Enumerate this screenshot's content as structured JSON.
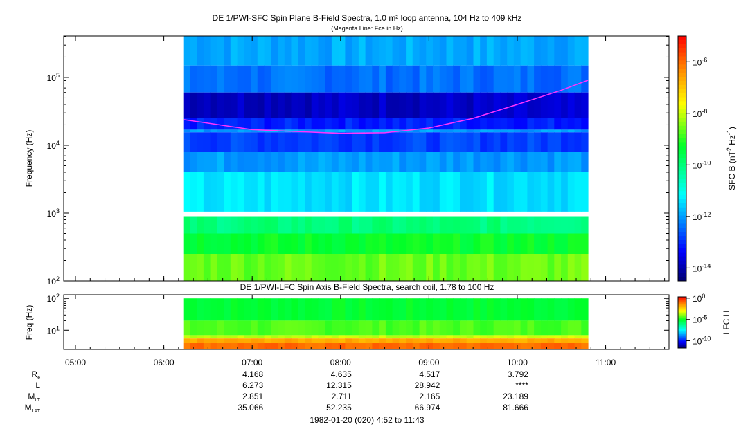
{
  "chart_data": [
    {
      "type": "heatmap",
      "title": "DE 1/PWI-SFC  Spin Plane B-Field Spectra, 1.0 m² loop antenna, 104 Hz to 409 kHz",
      "subtitle": "(Magenta Line: Fce in Hz)",
      "ylabel": "Frequency (Hz)",
      "yscale": "log",
      "ylim": [
        100,
        409000
      ],
      "yticks": [
        {
          "value": 100,
          "label": "10",
          "exp": "2"
        },
        {
          "value": 1000,
          "label": "10",
          "exp": "3"
        },
        {
          "value": 10000,
          "label": "10",
          "exp": "4"
        },
        {
          "value": 100000,
          "label": "10",
          "exp": "5"
        }
      ],
      "data_time_range_hours": [
        6.22,
        10.8
      ],
      "bands_log_power": [
        {
          "f_low": 150000,
          "f_high": 409000,
          "log_power": -11.9
        },
        {
          "f_low": 60000,
          "f_high": 150000,
          "log_power": -12.4
        },
        {
          "f_low": 25000,
          "f_high": 60000,
          "log_power": -13.8
        },
        {
          "f_low": 17000,
          "f_high": 25000,
          "log_power": -13.1
        },
        {
          "f_low": 15500,
          "f_high": 17000,
          "log_power": -12.0
        },
        {
          "f_low": 8000,
          "f_high": 15500,
          "log_power": -12.8
        },
        {
          "f_low": 4000,
          "f_high": 8000,
          "log_power": -12.0
        },
        {
          "f_low": 1050,
          "f_high": 4000,
          "log_power": -11.4
        },
        {
          "f_low": 500,
          "f_high": 900,
          "log_power": -10.0
        },
        {
          "f_low": 250,
          "f_high": 500,
          "log_power": -9.3
        },
        {
          "f_low": 100,
          "f_high": 250,
          "log_power": -8.6
        }
      ],
      "fce_line": {
        "color": "#ff33ff",
        "points": [
          {
            "hour": 6.22,
            "hz": 24000
          },
          {
            "hour": 7.0,
            "hz": 17000
          },
          {
            "hour": 8.0,
            "hz": 15000
          },
          {
            "hour": 8.5,
            "hz": 15300
          },
          {
            "hour": 9.0,
            "hz": 18000
          },
          {
            "hour": 9.5,
            "hz": 25000
          },
          {
            "hour": 10.0,
            "hz": 40000
          },
          {
            "hour": 10.5,
            "hz": 65000
          },
          {
            "hour": 10.8,
            "hz": 91000
          }
        ]
      },
      "colorbar": {
        "label": "SFC B (nT² Hz⁻¹)",
        "label_main": "SFC B (nT",
        "label_sup1": "2",
        "label_mid": " Hz",
        "label_sup2": "-1",
        "label_end": ")",
        "range_log": [
          -14.5,
          -5.0
        ],
        "ticks": [
          {
            "label": "10",
            "exp": "-6"
          },
          {
            "label": "10",
            "exp": "-8"
          },
          {
            "label": "10",
            "exp": "-10"
          },
          {
            "label": "10",
            "exp": "-12"
          },
          {
            "label": "10",
            "exp": "-14"
          }
        ],
        "tick_values_log": [
          -6,
          -8,
          -10,
          -12,
          -14
        ]
      }
    },
    {
      "type": "heatmap",
      "title": "DE 1/PWI-LFC  Spin Axis B-Field Spectra, search coil, 1.78 to 100 Hz",
      "ylabel": "Freq (Hz)",
      "yscale": "log",
      "ylim": [
        2.5,
        130
      ],
      "yticks": [
        {
          "value": 10,
          "label": "10",
          "exp": "1"
        },
        {
          "value": 100,
          "label": "10",
          "exp": "2"
        }
      ],
      "bands_log_power": [
        {
          "f_low": 20,
          "f_high": 100,
          "log_power": -5.2
        },
        {
          "f_low": 7,
          "f_high": 20,
          "log_power": -4.5
        },
        {
          "f_low": 5.5,
          "f_high": 7,
          "log_power": -3.5
        },
        {
          "f_low": 4,
          "f_high": 5.5,
          "log_power": -1.8
        },
        {
          "f_low": 2.5,
          "f_high": 4,
          "log_power": -1.0
        }
      ],
      "colorbar": {
        "label": "LFC H",
        "range_log": [
          -11.7,
          0.3
        ],
        "ticks": [
          {
            "label": "10",
            "exp": "0"
          },
          {
            "label": "10",
            "exp": "-5"
          },
          {
            "label": "10",
            "exp": "-10"
          }
        ],
        "tick_values_log": [
          0,
          -5,
          -10
        ]
      }
    }
  ],
  "time_axis": {
    "range_hours": [
      4.8667,
      11.7167
    ],
    "ticks": [
      {
        "hour": 5,
        "label": "05:00"
      },
      {
        "hour": 6,
        "label": "06:00"
      },
      {
        "hour": 7,
        "label": "07:00"
      },
      {
        "hour": 8,
        "label": "08:00"
      },
      {
        "hour": 9,
        "label": "09:00"
      },
      {
        "hour": 10,
        "label": "10:00"
      },
      {
        "hour": 11,
        "label": "11:00"
      }
    ]
  },
  "ephemeris": {
    "rows": [
      {
        "label": "R",
        "sub": "e",
        "values": [
          "",
          "",
          "4.168",
          "4.635",
          "4.517",
          "3.792",
          ""
        ]
      },
      {
        "label": "L",
        "sub": "",
        "values": [
          "",
          "",
          "6.273",
          "12.315",
          "28.942",
          "****",
          ""
        ]
      },
      {
        "label": "M",
        "sub": "LT",
        "values": [
          "",
          "",
          "2.851",
          "2.711",
          "2.165",
          "23.189",
          ""
        ]
      },
      {
        "label": "M",
        "sub": "LAT",
        "values": [
          "",
          "",
          "35.066",
          "52.235",
          "66.974",
          "81.666",
          ""
        ]
      }
    ],
    "footer": "1982-01-20 (020) 4:52 to 11:43"
  }
}
